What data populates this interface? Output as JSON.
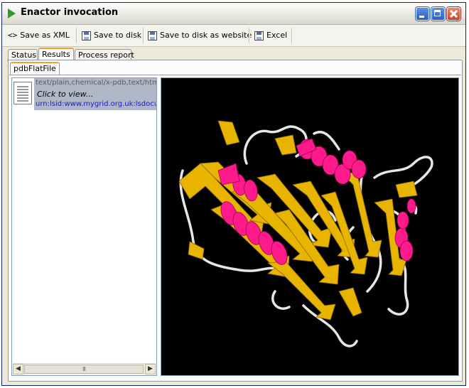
{
  "window": {
    "title": "Enactor invocation"
  },
  "toolbar": {
    "save_xml": "Save as XML",
    "save_disk": "Save to disk",
    "save_website": "Save to disk as website",
    "excel": "Excel"
  },
  "tabs": [
    {
      "label": "Status",
      "active": false
    },
    {
      "label": "Results",
      "active": true
    },
    {
      "label": "Process report",
      "active": false
    }
  ],
  "subtab": {
    "label": "pdbFlatFile"
  },
  "result": {
    "mime": "text/plain,chemical/x-pdb,text/html",
    "action": "Click to view...",
    "urn": "urn:lsid:www.mygrid.org.uk:lsdocu"
  },
  "scrollbar": {
    "thumb": "III"
  },
  "colors": {
    "sheet": "#e8b400",
    "helix": "#ff1a8c",
    "coil": "#e6e6e6",
    "background": "#000000"
  }
}
